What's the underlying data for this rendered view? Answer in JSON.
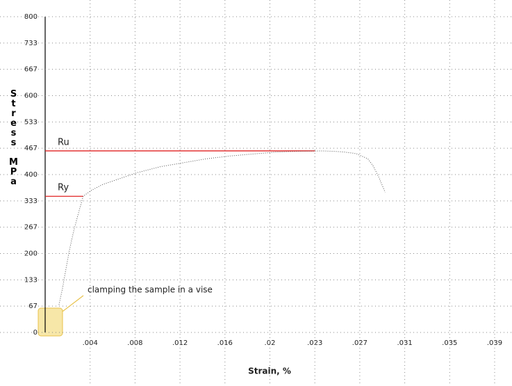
{
  "chart_data": {
    "type": "line",
    "x_label": "Strain, %",
    "y_label": "Stress MPa",
    "xlim": [
      0,
      0.039
    ],
    "ylim": [
      0,
      800
    ],
    "xticks": [
      {
        "value": 0.0039,
        "label": ".004"
      },
      {
        "value": 0.0078,
        "label": ".008"
      },
      {
        "value": 0.0117,
        "label": ".012"
      },
      {
        "value": 0.0156,
        "label": ".016"
      },
      {
        "value": 0.0195,
        "label": ".02"
      },
      {
        "value": 0.0234,
        "label": ".023"
      },
      {
        "value": 0.0273,
        "label": ".027"
      },
      {
        "value": 0.0312,
        "label": ".031"
      },
      {
        "value": 0.0351,
        "label": ".035"
      },
      {
        "value": 0.039,
        "label": ".039"
      }
    ],
    "yticks": [
      0,
      {
        "value": 66.67,
        "label": "67"
      },
      {
        "value": 133.33,
        "label": "133"
      },
      200,
      {
        "value": 266.67,
        "label": "267"
      },
      {
        "value": 333.33,
        "label": "333"
      },
      400,
      {
        "value": 466.67,
        "label": "467"
      },
      {
        "value": 533.33,
        "label": "533"
      },
      600,
      {
        "value": 666.67,
        "label": "667"
      },
      {
        "value": 733.33,
        "label": "733"
      },
      800
    ],
    "grid": true,
    "series": [
      {
        "color": "#555555",
        "x": [
          0.0012,
          0.0015,
          0.0018,
          0.0021,
          0.0025,
          0.003,
          0.0033,
          0.004,
          0.005,
          0.006,
          0.008,
          0.01,
          0.012,
          0.014,
          0.016,
          0.018,
          0.02,
          0.022,
          0.024,
          0.025,
          0.026,
          0.027,
          0.028,
          0.0285,
          0.029,
          0.0295
        ],
        "values": [
          70,
          111,
          160,
          208,
          260,
          314,
          345,
          360,
          375,
          385,
          405,
          420,
          430,
          440,
          447,
          452,
          457,
          459,
          460,
          459,
          457,
          453,
          440,
          420,
          390,
          355
        ]
      }
    ],
    "reference_lines": [
      {
        "label": "Ru",
        "value": 460,
        "x_end": 0.0234,
        "color": "#e02020"
      },
      {
        "label": "Ry",
        "value": 345,
        "x_end": 0.0033,
        "color": "#e02020"
      }
    ],
    "annotation": {
      "text": "clamping the sample in a vise",
      "x": 0.0015,
      "y": 60
    }
  }
}
